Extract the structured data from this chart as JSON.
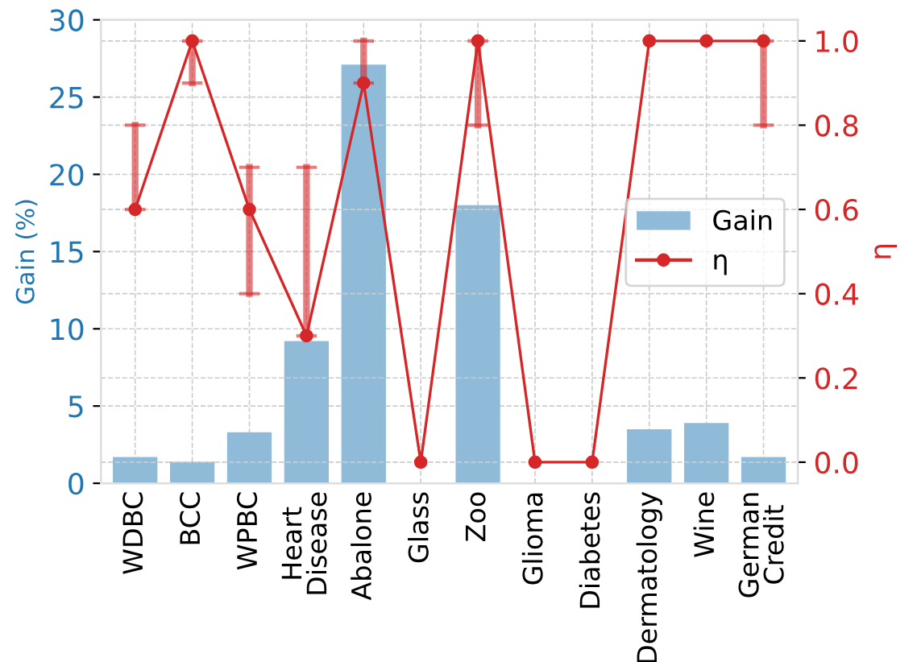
{
  "chart_data": {
    "type": "bar",
    "categories": [
      "WDBC",
      "BCC",
      "WPBC",
      "Heart\nDisease",
      "Abalone",
      "Glass",
      "Zoo",
      "Glioma",
      "Diabetes",
      "Dermatology",
      "Wine",
      "German\nCredit"
    ],
    "ylabel": "Gain (%)",
    "y2label": "η",
    "ylim": [
      0,
      30
    ],
    "yticks": [
      0,
      5,
      10,
      15,
      20,
      25,
      30
    ],
    "y2lim": [
      -0.05,
      1.05
    ],
    "y2ticks": [
      {
        "value": 0,
        "label": "0.0"
      },
      {
        "value": 0.2,
        "label": "0.2"
      },
      {
        "value": 0.4,
        "label": "0.4"
      },
      {
        "value": 0.6,
        "label": "0.6"
      },
      {
        "value": 0.8,
        "label": "0.8"
      },
      {
        "value": 1,
        "label": "1.0"
      }
    ],
    "grid": true,
    "legend": "right",
    "series": [
      {
        "name": "Gain",
        "color": "#8fbbd9",
        "values": [
          1.7,
          1.4,
          3.3,
          9.2,
          27.1,
          0,
          18.0,
          0,
          0,
          3.5,
          3.9,
          1.7
        ]
      },
      {
        "name": "η",
        "type": "line",
        "axis": "y2",
        "color": "#d62728",
        "marker": "circle",
        "values": [
          0.6,
          1.0,
          0.6,
          0.3,
          0.9,
          0,
          1.0,
          0,
          0,
          1.0,
          1.0,
          1.0
        ],
        "errors": [
          [
            0.6,
            0.8
          ],
          [
            0.9,
            1.0
          ],
          [
            0.4,
            0.7
          ],
          [
            0.3,
            0.7
          ],
          [
            0.9,
            1.0
          ],
          null,
          [
            0.8,
            1.0
          ],
          null,
          null,
          null,
          null,
          [
            0.8,
            1.0
          ]
        ]
      }
    ]
  }
}
